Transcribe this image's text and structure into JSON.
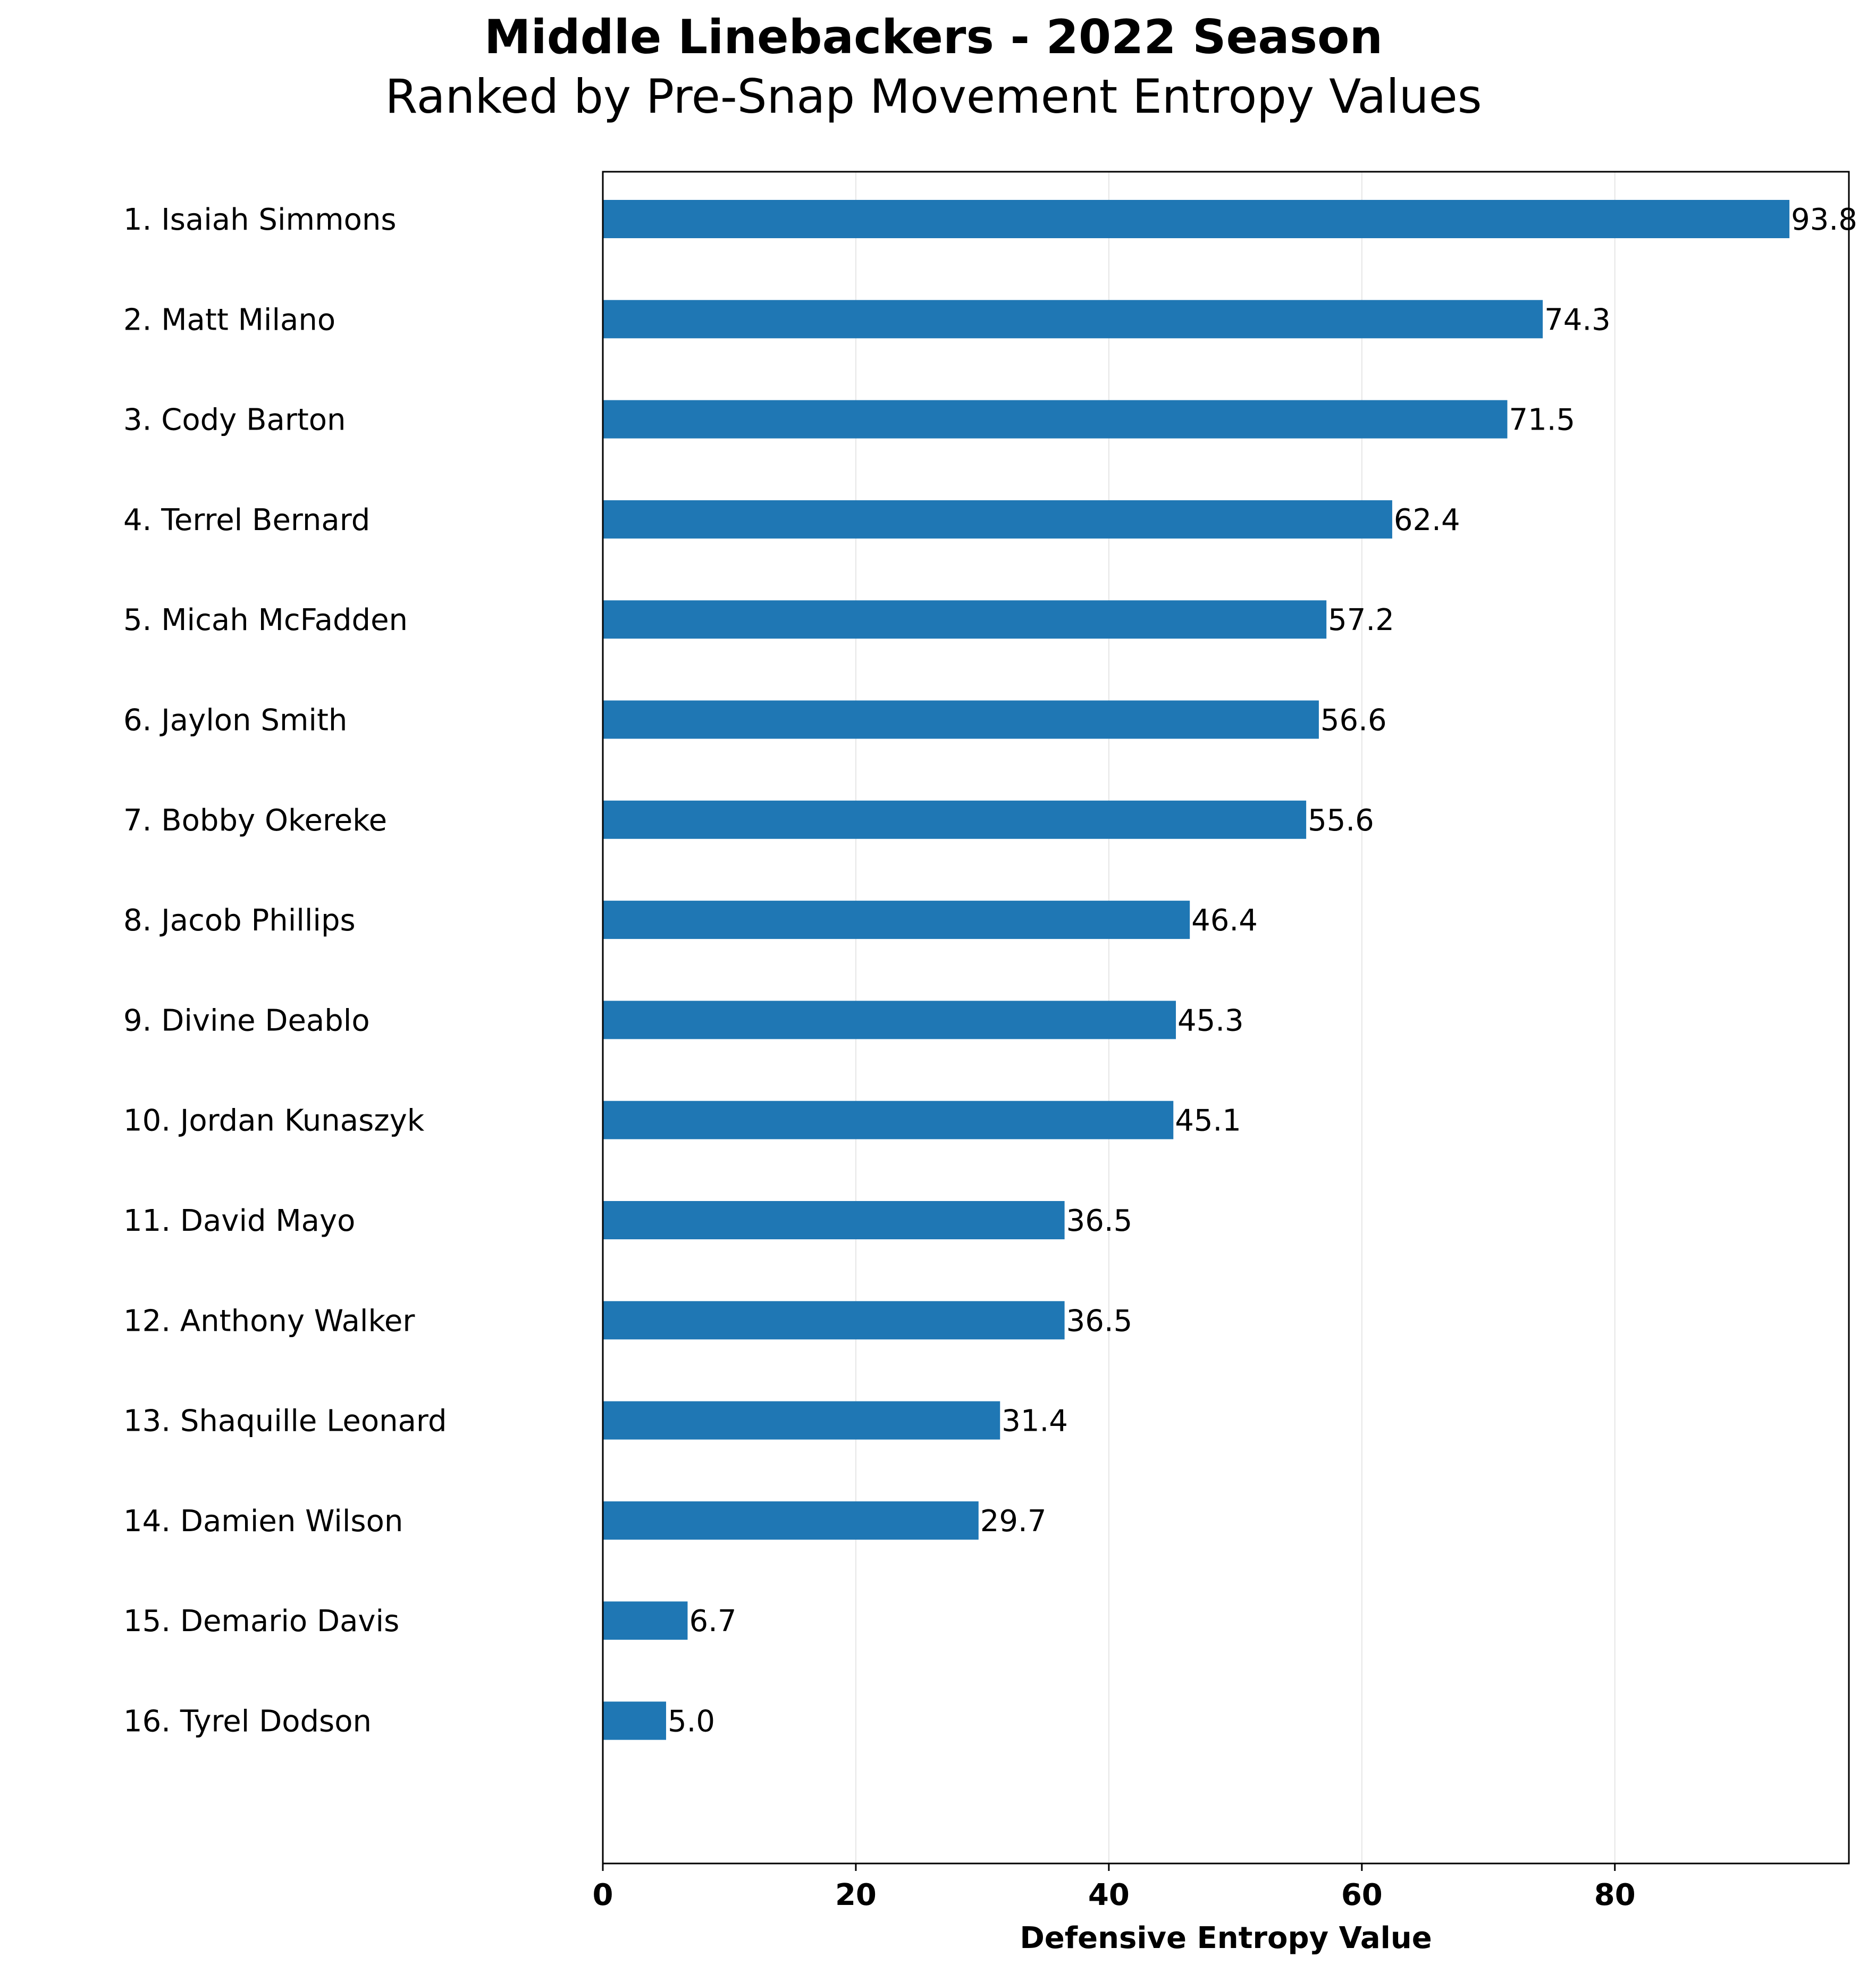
{
  "chart_data": {
    "type": "bar",
    "orientation": "horizontal",
    "title": "Middle Linebackers - 2022 Season",
    "subtitle": "Ranked by Pre-Snap Movement Entropy Values",
    "xlabel": "Defensive Entropy Value",
    "ylabel": "",
    "xlim": [
      0,
      98.5
    ],
    "xticks": [
      "0",
      "20",
      "40",
      "60",
      "80"
    ],
    "grid": "vertical",
    "bar_color": "#1f77b4",
    "categories": [
      "1. Isaiah Simmons",
      "2. Matt Milano",
      "3. Cody Barton",
      "4. Terrel Bernard",
      "5. Micah McFadden",
      "6. Jaylon Smith",
      "7. Bobby Okereke",
      "8. Jacob Phillips",
      "9. Divine Deablo",
      "10. Jordan Kunaszyk",
      "11. David Mayo",
      "12. Anthony Walker",
      "13. Shaquille Leonard",
      "14. Damien Wilson",
      "15. Demario Davis",
      "16. Tyrel Dodson"
    ],
    "values": [
      93.8,
      74.3,
      71.5,
      62.4,
      57.2,
      56.6,
      55.6,
      46.4,
      45.3,
      45.1,
      36.5,
      36.5,
      31.4,
      29.7,
      6.7,
      5.0
    ],
    "value_labels": [
      "93.8",
      "74.3",
      "71.5",
      "62.4",
      "57.2",
      "56.6",
      "55.6",
      "46.4",
      "45.3",
      "45.1",
      "36.5",
      "36.5",
      "31.4",
      "29.7",
      "6.7",
      "5.0"
    ]
  }
}
